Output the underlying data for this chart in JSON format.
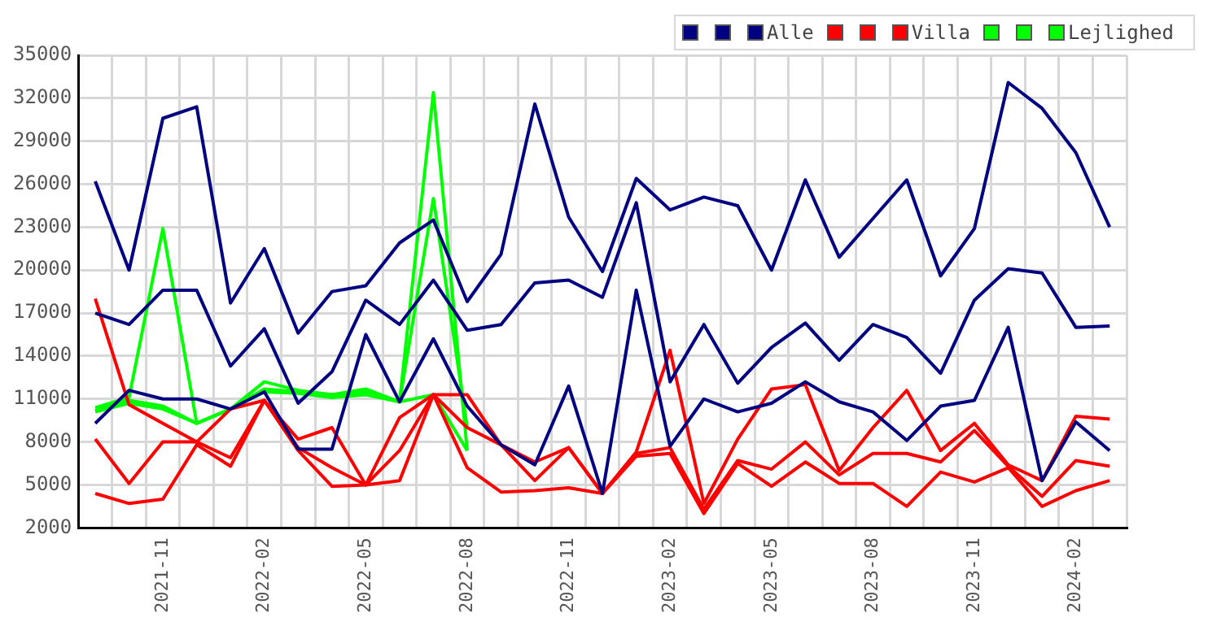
{
  "chart_data": {
    "type": "line",
    "categories": [
      null,
      null,
      "2021-11",
      null,
      null,
      "2022-02",
      null,
      null,
      "2022-05",
      null,
      null,
      "2022-08",
      null,
      null,
      "2022-11",
      null,
      null,
      "2023-02",
      null,
      null,
      "2023-05",
      null,
      null,
      "2023-08",
      null,
      null,
      "2023-11",
      null,
      null,
      "2024-02",
      null
    ],
    "series": [
      {
        "color": "#000080",
        "values": [
          26200,
          20000,
          30600,
          31400,
          17700,
          21500,
          15600,
          18500,
          18900,
          21900,
          23500,
          17800,
          21100,
          31600,
          23700,
          19900,
          26400,
          24200,
          25100,
          24500,
          20000,
          26300,
          20900,
          23600,
          26300,
          19600,
          22900,
          33100,
          31300,
          28200,
          23000
        ]
      },
      {
        "color": "#000080",
        "values": [
          17000,
          16200,
          18600,
          18600,
          13300,
          15900,
          10700,
          12900,
          17900,
          16200,
          19300,
          15800,
          16200,
          19100,
          19300,
          18100,
          24700,
          12200,
          16200,
          12100,
          14600,
          16300,
          13700,
          16200,
          15300,
          12800,
          17900,
          20100,
          19800,
          16000,
          16100
        ]
      },
      {
        "name": "Alle",
        "color": "#000080",
        "values": [
          9300,
          11600,
          11000,
          11000,
          10300,
          11500,
          7500,
          7500,
          15500,
          10800,
          15200,
          10500,
          7800,
          6400,
          11900,
          4400,
          18600,
          7700,
          11000,
          10100,
          10700,
          12200,
          10800,
          10100,
          8100,
          10500,
          10900,
          16000,
          5300,
          9400,
          7400
        ]
      },
      {
        "color": "#ff0000",
        "values": [
          18000,
          10600,
          9300,
          8000,
          10300,
          10900,
          8200,
          9000,
          5000,
          9700,
          11300,
          11300,
          7800,
          6600,
          7600,
          4400,
          7300,
          14400,
          3700,
          8200,
          11700,
          12000,
          6000,
          9000,
          11600,
          7400,
          9300,
          6400,
          5300,
          9800,
          9600
        ]
      },
      {
        "color": "#ff0000",
        "values": [
          8200,
          5100,
          8000,
          8000,
          6900,
          10900,
          7600,
          6200,
          5000,
          7400,
          11300,
          9000,
          7800,
          5300,
          7600,
          4400,
          7200,
          7600,
          3300,
          6700,
          6100,
          8000,
          5700,
          7200,
          7200,
          6600,
          8800,
          6300,
          4200,
          6700,
          6300
        ]
      },
      {
        "name": "Villa",
        "color": "#ff0000",
        "values": [
          4400,
          3700,
          4000,
          7800,
          6300,
          10900,
          7400,
          4900,
          5000,
          5300,
          11300,
          6200,
          4500,
          4600,
          4800,
          4400,
          7000,
          7200,
          3000,
          6500,
          4900,
          6600,
          5100,
          5100,
          3500,
          5900,
          5200,
          6200,
          3500,
          4600,
          5300
        ]
      },
      {
        "color": "#00ff00",
        "values": [
          10400,
          11100,
          22900,
          9300,
          10300,
          12200,
          11600,
          11300,
          11700,
          10800,
          32400,
          7400,
          null,
          null,
          null,
          null,
          null,
          null,
          null,
          null,
          null,
          null,
          null,
          null,
          null,
          null,
          null,
          null,
          null,
          null,
          null
        ]
      },
      {
        "color": "#00ff00",
        "values": [
          10200,
          10900,
          10500,
          9300,
          10300,
          11700,
          11500,
          11300,
          11500,
          10800,
          25000,
          9000,
          null,
          null,
          null,
          null,
          null,
          null,
          null,
          null,
          null,
          null,
          null,
          null,
          null,
          null,
          null,
          null,
          null,
          null,
          null
        ]
      },
      {
        "name": "Lejlighed",
        "color": "#00ff00",
        "values": [
          10100,
          10700,
          10300,
          9300,
          10300,
          11500,
          11400,
          11100,
          11300,
          10800,
          11300,
          7400,
          null,
          null,
          null,
          null,
          null,
          null,
          null,
          null,
          null,
          null,
          null,
          null,
          null,
          null,
          null,
          null,
          null,
          null,
          null
        ]
      }
    ],
    "ylim": [
      2000,
      35000
    ],
    "yticks": [
      2000,
      5000,
      8000,
      11000,
      14000,
      17000,
      20000,
      23000,
      26000,
      29000,
      32000,
      35000
    ],
    "grid": true,
    "legend": "top right",
    "marker": "none",
    "line_style": "solid"
  }
}
